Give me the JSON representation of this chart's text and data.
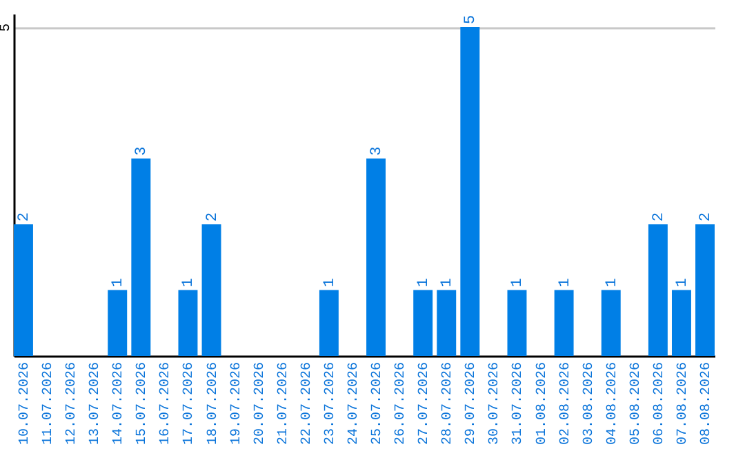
{
  "chart_data": {
    "type": "bar",
    "categories": [
      "10.07.2026",
      "11.07.2026",
      "12.07.2026",
      "13.07.2026",
      "14.07.2026",
      "15.07.2026",
      "16.07.2026",
      "17.07.2026",
      "18.07.2026",
      "19.07.2026",
      "20.07.2026",
      "21.07.2026",
      "22.07.2026",
      "23.07.2026",
      "24.07.2026",
      "25.07.2026",
      "26.07.2026",
      "27.07.2026",
      "28.07.2026",
      "29.07.2026",
      "30.07.2026",
      "31.07.2026",
      "01.08.2026",
      "02.08.2026",
      "03.08.2026",
      "04.08.2026",
      "05.08.2026",
      "06.08.2026",
      "07.08.2026",
      "08.08.2026"
    ],
    "values": [
      2,
      0,
      0,
      0,
      1,
      3,
      0,
      1,
      2,
      0,
      0,
      0,
      0,
      1,
      0,
      3,
      0,
      1,
      1,
      5,
      0,
      1,
      0,
      1,
      0,
      1,
      0,
      2,
      1,
      2
    ],
    "value_labels": [
      "2",
      null,
      null,
      null,
      "1",
      "3",
      null,
      "1",
      "2",
      null,
      null,
      null,
      null,
      "1",
      null,
      "3",
      null,
      "1",
      "1",
      "5",
      null,
      "1",
      null,
      "1",
      null,
      "1",
      null,
      "2",
      "1",
      "2"
    ],
    "color": "#007fe6",
    "ylim": [
      0,
      5.2
    ],
    "yticks": [
      5
    ],
    "grid": "y"
  }
}
